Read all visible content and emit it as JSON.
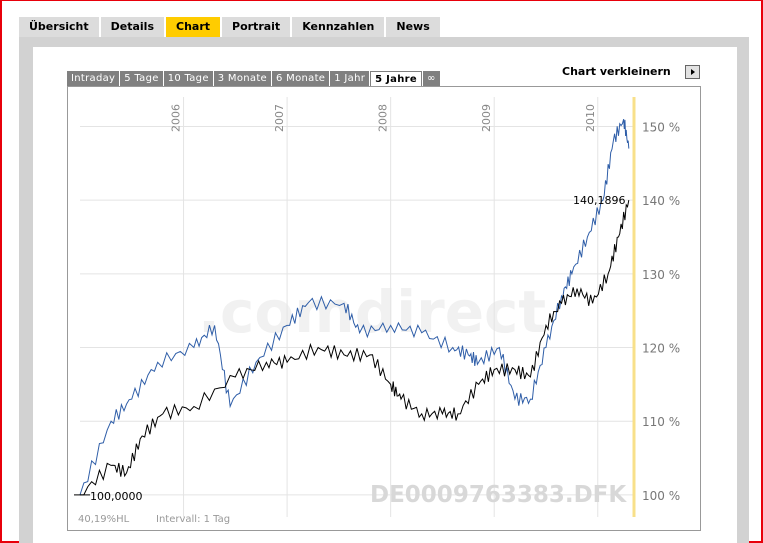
{
  "tabs": [
    {
      "label": "Übersicht",
      "active": false
    },
    {
      "label": "Details",
      "active": false
    },
    {
      "label": "Chart",
      "active": true
    },
    {
      "label": "Portrait",
      "active": false
    },
    {
      "label": "Kennzahlen",
      "active": false
    },
    {
      "label": "News",
      "active": false
    }
  ],
  "range_tabs": [
    {
      "label": "Intraday",
      "active": false
    },
    {
      "label": "5 Tage",
      "active": false
    },
    {
      "label": "10 Tage",
      "active": false
    },
    {
      "label": "3 Monate",
      "active": false
    },
    {
      "label": "6 Monate",
      "active": false
    },
    {
      "label": "1 Jahr",
      "active": false
    },
    {
      "label": "5 Jahre",
      "active": true
    },
    {
      "label": "∞",
      "active": false
    }
  ],
  "chart_toggle_label": "Chart verkleinern",
  "chart_toggle_icon": "triangle-right-icon",
  "watermark": ".comdirect",
  "colors": {
    "accent": "#ffcc00",
    "series_blue": "#2f5ea8",
    "series_black": "#000000"
  },
  "chart_data": {
    "type": "line",
    "x_labels": [
      "2006",
      "2007",
      "2008",
      "2009",
      "2010"
    ],
    "y_ticks": [
      "100 %",
      "110 %",
      "120 %",
      "130 %",
      "140 %",
      "150 %"
    ],
    "ylim": [
      97,
      154
    ],
    "grid": true,
    "series": [
      {
        "key": "blue",
        "x": [
          2005.0,
          2005.3,
          2005.5,
          2005.75,
          2006.1,
          2006.3,
          2006.45,
          2006.7,
          2007.0,
          2007.2,
          2007.55,
          2007.7,
          2008.0,
          2008.3,
          2008.6,
          2008.75,
          2008.85,
          2009.05,
          2009.2,
          2009.35,
          2009.5,
          2009.65,
          2009.75,
          2009.9,
          2010.05,
          2010.15,
          2010.25,
          2010.3
        ],
        "values": [
          100,
          110,
          113,
          118,
          120,
          123,
          112,
          118,
          123,
          126,
          126,
          122,
          123,
          122,
          120,
          119,
          118,
          120,
          113,
          113,
          120,
          127,
          130,
          135,
          140,
          148,
          151,
          147
        ]
      },
      {
        "key": "black",
        "x": [
          2005.0,
          2005.3,
          2005.45,
          2005.6,
          2005.8,
          2006.1,
          2006.5,
          2006.8,
          2007.0,
          2007.3,
          2007.55,
          2007.8,
          2008.0,
          2008.1,
          2008.3,
          2008.5,
          2008.65,
          2008.85,
          2009.0,
          2009.2,
          2009.35,
          2009.5,
          2009.65,
          2009.8,
          2009.95,
          2010.1,
          2010.2,
          2010.3
        ],
        "values": [
          100,
          104,
          103,
          108,
          111,
          112,
          116,
          118,
          118,
          120,
          119,
          119,
          115,
          113,
          111,
          111,
          111,
          115,
          117,
          117,
          116,
          123,
          126,
          128,
          126,
          130,
          135,
          140
        ]
      }
    ],
    "start_label": "100,0000",
    "end_label": "140,1896",
    "corner_left": "40,19%HL",
    "corner_mid": "Intervall: 1 Tag",
    "symbol_watermark": "DE0009763383.DFK"
  }
}
